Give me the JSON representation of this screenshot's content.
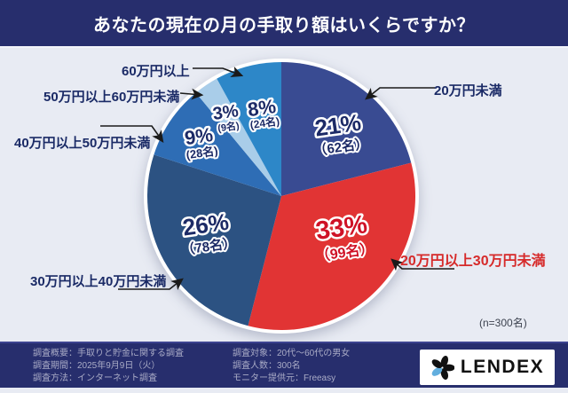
{
  "header": {
    "title": "あなたの現在の月の手取り額はいくらですか？"
  },
  "chart_data": {
    "type": "pie",
    "title": "あなたの現在の月の手取り額はいくらですか？",
    "n_label": "(n=300名)",
    "total_n": 300,
    "direction": "clockwise",
    "start_angle_deg": 0,
    "legend_position": "callout-labels-around-pie",
    "slices": [
      {
        "label": "20万円未満",
        "percent": 21,
        "percent_label": "21%",
        "count": 62,
        "count_label": "（62名）",
        "color": "#394b92",
        "value_text_color": "#1c2a66",
        "callout_color": "#1a2a66"
      },
      {
        "label": "20万円以上30万円未満",
        "percent": 33,
        "percent_label": "33%",
        "count": 99,
        "count_label": "（99名）",
        "color": "#e13434",
        "value_text_color": "#cf1126",
        "callout_color": "#d62a2a"
      },
      {
        "label": "30万円以上40万円未満",
        "percent": 26,
        "percent_label": "26%",
        "count": 78,
        "count_label": "（78名）",
        "color": "#2c5282",
        "value_text_color": "#1c2a66",
        "callout_color": "#1a2a66"
      },
      {
        "label": "40万円以上50万円未満",
        "percent": 9,
        "percent_label": "9%",
        "count": 28,
        "count_label": "(28名)",
        "color": "#2e6db5",
        "value_text_color": "#1c2a66",
        "callout_color": "#1a2a66"
      },
      {
        "label": "50万円以上60万円未満",
        "percent": 3,
        "percent_label": "3%",
        "count": 9,
        "count_label": "(9名)",
        "color": "#a9cde9",
        "value_text_color": "#1c2a66",
        "callout_color": "#1a2a66"
      },
      {
        "label": "60万円以上",
        "percent": 8,
        "percent_label": "8%",
        "count": 24,
        "count_label": "(24名)",
        "color": "#2d87c8",
        "value_text_color": "#1c2a66",
        "callout_color": "#1a2a66"
      }
    ],
    "layout": {
      "center": [
        317,
        221
      ],
      "radius": 151,
      "ring_color": "#ffffff"
    }
  },
  "footer": {
    "left_lines": [
      "調査概要：手取りと貯金に関する調査",
      "調査期間：2025年9月9日（火）",
      "調査方法：インターネット調査"
    ],
    "right_lines": [
      "調査対象：20代～60代の男女",
      "調査人数：300名",
      "モニター提供元：Freeasy"
    ],
    "logo_text": "LENDEX"
  },
  "colors": {
    "page_bg": "#e8ebf3",
    "band_bg": "#272e6d",
    "footer_text": "#a9abc6",
    "leader_line": "#1a1a1a",
    "logo_accent_blue": "#62aede"
  }
}
